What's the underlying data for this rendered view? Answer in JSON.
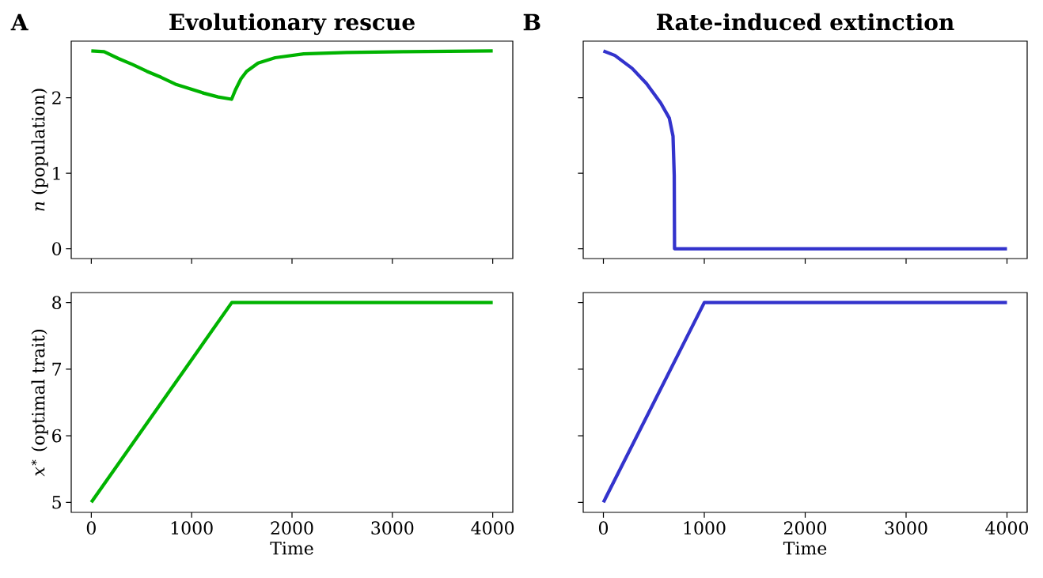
{
  "chart_data": [
    {
      "type": "line",
      "title": "Evolutionary rescue",
      "ylabel": "*n* (population)",
      "annotations": [
        "A"
      ],
      "xlim": [
        -200,
        4200
      ],
      "ylim": [
        -0.13,
        2.75
      ],
      "xticks": [
        0,
        1000,
        2000,
        3000,
        4000
      ],
      "yticks": [
        0,
        1,
        2
      ],
      "tick_labels": "y",
      "grid": false,
      "marker": "none",
      "line_style": "solid",
      "series": [
        {
          "color": "#00b300",
          "x": [
            0,
            128,
            270,
            412,
            554,
            696,
            838,
            980,
            1122,
            1264,
            1398,
            1435,
            1491,
            1548,
            1662,
            1832,
            2116,
            2543,
            3125,
            4000
          ],
          "values": [
            2.62,
            2.61,
            2.52,
            2.44,
            2.35,
            2.27,
            2.18,
            2.12,
            2.06,
            2.01,
            1.98,
            2.1,
            2.25,
            2.35,
            2.46,
            2.53,
            2.58,
            2.6,
            2.61,
            2.62
          ]
        }
      ]
    },
    {
      "type": "line",
      "title": "Rate-induced extinction",
      "annotations": [
        "B"
      ],
      "xlim": [
        -200,
        4200
      ],
      "ylim": [
        -0.13,
        2.75
      ],
      "xticks": [
        0,
        1000,
        2000,
        3000,
        4000
      ],
      "yticks": [
        0,
        1,
        2
      ],
      "tick_labels": false,
      "grid": false,
      "marker": "none",
      "line_style": "solid",
      "series": [
        {
          "color": "#3333cc",
          "x": [
            0,
            114,
            284,
            426,
            568,
            653,
            690,
            702,
            705,
            4000
          ],
          "values": [
            2.62,
            2.56,
            2.39,
            2.19,
            1.93,
            1.73,
            1.49,
            0.97,
            0,
            0
          ]
        }
      ]
    },
    {
      "type": "line",
      "xlabel": "Time",
      "ylabel": "*x*$^{∗}$ (optimal trait)",
      "xlim": [
        -200,
        4200
      ],
      "ylim": [
        4.85,
        8.15
      ],
      "xticks": [
        0,
        1000,
        2000,
        3000,
        4000
      ],
      "yticks": [
        5,
        6,
        7,
        8
      ],
      "grid": false,
      "marker": "none",
      "line_style": "solid",
      "series": [
        {
          "color": "#00b300",
          "x": [
            0,
            1400,
            4000
          ],
          "values": [
            5,
            8,
            8
          ]
        }
      ]
    },
    {
      "type": "line",
      "xlabel": "Time",
      "xlim": [
        -200,
        4200
      ],
      "ylim": [
        4.85,
        8.15
      ],
      "xticks": [
        0,
        1000,
        2000,
        3000,
        4000
      ],
      "yticks": [
        5,
        6,
        7,
        8
      ],
      "tick_labels": "x",
      "grid": false,
      "marker": "none",
      "line_style": "solid",
      "series": [
        {
          "color": "#3333cc",
          "x": [
            0,
            1000,
            4000
          ],
          "values": [
            5,
            8,
            8
          ]
        }
      ]
    }
  ]
}
